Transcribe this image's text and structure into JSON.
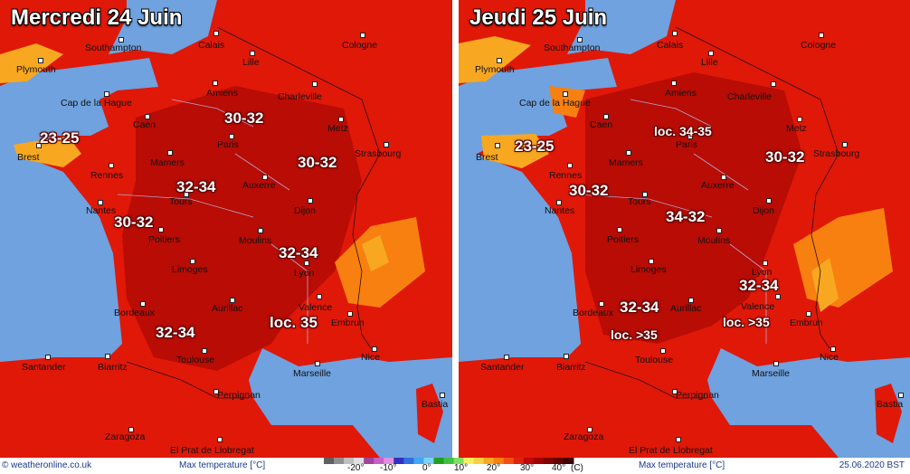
{
  "panels": [
    {
      "title": "Mercredi 24 Juin",
      "cities": [
        "Southampton",
        "Calais",
        "Cologne",
        "Plymouth",
        "Lille",
        "Cap de la Hague",
        "Amiens",
        "Charleville",
        "Caen",
        "Metz",
        "Brest",
        "Paris",
        "Strasbourg",
        "Mamers",
        "Rennes",
        "Auxerre",
        "Nantes",
        "Tours",
        "Dijon",
        "Poitiers",
        "Moulins",
        "Limoges",
        "Lyon",
        "Bordeaux",
        "Aurillac",
        "Valence",
        "Embrun",
        "Toulouse",
        "Nice",
        "Santander",
        "Biarritz",
        "Marseille",
        "Perpignan",
        "Bastia",
        "Zaragoza",
        "El Prat de Llobregat"
      ],
      "temperature_labels": [
        "30-32",
        "23-25",
        "30-32",
        "32-34",
        "30-32",
        "32-34",
        "loc. 35",
        "32-34"
      ]
    },
    {
      "title": "Jeudi 25 Juin",
      "cities": [
        "Southampton",
        "Calais",
        "Cologne",
        "Plymouth",
        "Lille",
        "Cap de la Hague",
        "Amiens",
        "Charleville",
        "Caen",
        "Metz",
        "Brest",
        "Paris",
        "Strasbourg",
        "Rennes",
        "Mamers",
        "Auxerre",
        "Nantes",
        "Tours",
        "Dijon",
        "Poitiers",
        "Moulins",
        "Limoges",
        "Lyon",
        "Bordeaux",
        "Aurillac",
        "Valence",
        "Embrun",
        "Toulouse",
        "Nice",
        "Santander",
        "Biarritz",
        "Marseille",
        "Perpignan",
        "Bastia",
        "Zaragoza",
        "El Prat de Llobregat"
      ],
      "temperature_labels": [
        "loc. 34-35",
        "23-25",
        "30-32",
        "30-32",
        "34-32",
        "32-34",
        "32-34",
        "loc. >35",
        "loc. >35"
      ]
    }
  ],
  "footer": {
    "credit": "© weatheronline.co.uk",
    "unit_label": "Max temperature [°C]",
    "date": "25.06.2020 BST"
  },
  "legend": {
    "ticks": [
      "-20°",
      "-10°",
      "0°",
      "10°",
      "20°",
      "30°",
      "40°",
      "(C)"
    ],
    "colors": [
      "#606060",
      "#909090",
      "#c0c0c0",
      "#e0e0e0",
      "#a0449c",
      "#c860c8",
      "#e090e0",
      "#3030c0",
      "#3070e0",
      "#40a8f0",
      "#80d0f8",
      "#20a020",
      "#40c040",
      "#80e060",
      "#f8f060",
      "#f8d040",
      "#f8a820",
      "#f88010",
      "#f05010",
      "#e02010",
      "#c00808",
      "#a00000",
      "#800000",
      "#600000",
      "#400000"
    ],
    "land_color": "#e01808",
    "hot_color": "#b80c04",
    "sea_color": "#6fa2df"
  }
}
